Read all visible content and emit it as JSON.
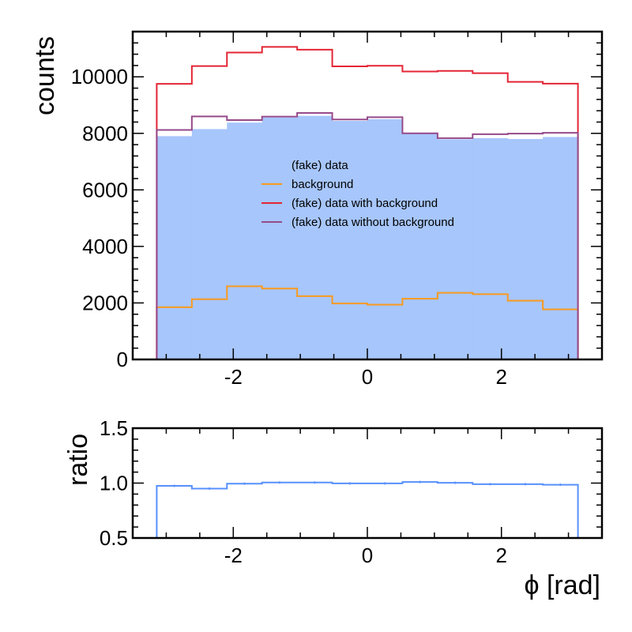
{
  "chart_data": [
    {
      "type": "histogram",
      "ylabel": "counts",
      "xlim": [
        -3.5,
        3.5
      ],
      "ylim": [
        0,
        11600
      ],
      "bin_edges": [
        -3.1416,
        -2.618,
        -2.0944,
        -1.5708,
        -1.0472,
        -0.5236,
        0.0,
        0.5236,
        1.0472,
        1.5708,
        2.0944,
        2.618,
        3.1416
      ],
      "x_ticks": [
        "-2",
        "0",
        "2"
      ],
      "x_tick_values": [
        -2,
        0,
        2
      ],
      "y_ticks": [
        "0",
        "2000",
        "4000",
        "6000",
        "8000",
        "10000"
      ],
      "y_tick_values": [
        0,
        2000,
        4000,
        6000,
        8000,
        10000
      ],
      "legend_position": "center",
      "series": [
        {
          "name": "(fake) data",
          "style": "filled",
          "color": "#a7c6fb",
          "values": [
            7900,
            8150,
            8380,
            8560,
            8620,
            8440,
            8500,
            7980,
            7790,
            7830,
            7800,
            7870
          ]
        },
        {
          "name": "background",
          "style": "step",
          "color": "#f89a1f",
          "values": [
            1850,
            2130,
            2590,
            2510,
            2240,
            1980,
            1940,
            2150,
            2360,
            2310,
            2080,
            1770
          ]
        },
        {
          "name": "(fake) data with background",
          "style": "step",
          "color": "#e42535",
          "values": [
            9750,
            10380,
            10860,
            11060,
            10960,
            10370,
            10390,
            10190,
            10210,
            10130,
            9820,
            9760
          ]
        },
        {
          "name": "(fake) data without background",
          "style": "step",
          "color": "#964a8b",
          "values": [
            8120,
            8600,
            8470,
            8590,
            8720,
            8490,
            8570,
            8000,
            7830,
            7970,
            7990,
            8020
          ]
        }
      ]
    },
    {
      "type": "histogram",
      "xlabel": "ϕ [rad]",
      "ylabel": "ratio",
      "xlim": [
        -3.5,
        3.5
      ],
      "ylim": [
        0.5,
        1.5
      ],
      "bin_edges": [
        -3.1416,
        -2.618,
        -2.0944,
        -1.5708,
        -1.0472,
        -0.5236,
        0.0,
        0.5236,
        1.0472,
        1.5708,
        2.0944,
        2.618,
        3.1416
      ],
      "x_ticks": [
        "-2",
        "0",
        "2"
      ],
      "x_tick_values": [
        -2,
        0,
        2
      ],
      "y_ticks": [
        "0.5",
        "1.0",
        "1.5"
      ],
      "y_tick_values": [
        0.5,
        1.0,
        1.5
      ],
      "series": [
        {
          "name": "ratio",
          "style": "step",
          "color": "#5790fc",
          "values": [
            0.975,
            0.95,
            0.995,
            1.005,
            1.005,
            0.997,
            0.997,
            1.01,
            1.003,
            0.99,
            0.99,
            0.985
          ],
          "errors": [
            0.011,
            0.011,
            0.011,
            0.011,
            0.011,
            0.011,
            0.011,
            0.011,
            0.011,
            0.011,
            0.011,
            0.011
          ]
        }
      ]
    }
  ]
}
